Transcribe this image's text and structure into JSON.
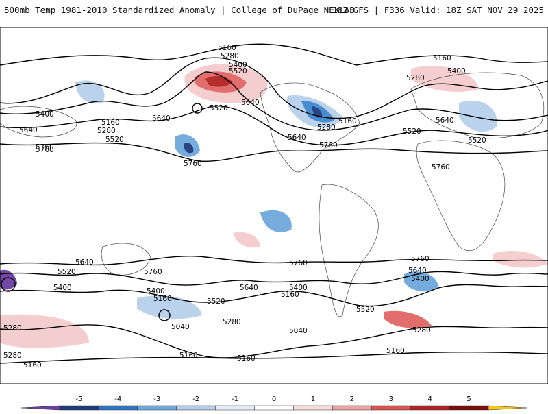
{
  "header": {
    "title": "500mb Temp 1981-2010 Standardized Anomaly | College of DuPage NEXLAB",
    "run_info": "18Z GFS | F336 Valid: 18Z SAT NOV 29 2025"
  },
  "contour_labels": [
    "5160",
    "5280",
    "5400",
    "5520",
    "5640",
    "5760",
    "5040"
  ],
  "colorbar": {
    "ticks": [
      "-5",
      "-4",
      "-3",
      "-2",
      "-1",
      "0",
      "1",
      "2",
      "3",
      "4",
      "5"
    ],
    "colors": [
      "#6b3fa0",
      "#1f3b7a",
      "#2f74c0",
      "#6fa8dc",
      "#b3cde8",
      "#e3ecf6",
      "#ffffff",
      "#f7dada",
      "#eaa3a3",
      "#d9534f",
      "#b22222",
      "#7a0c0c",
      "#f5c518"
    ]
  },
  "anomaly_colors": {
    "cold_strong": "#1f3b7a",
    "cold": "#3f86cf",
    "cool": "#b7d0ea",
    "warm": "#f4cccc",
    "warm_strong": "#e06666",
    "hot": "#b22222"
  }
}
